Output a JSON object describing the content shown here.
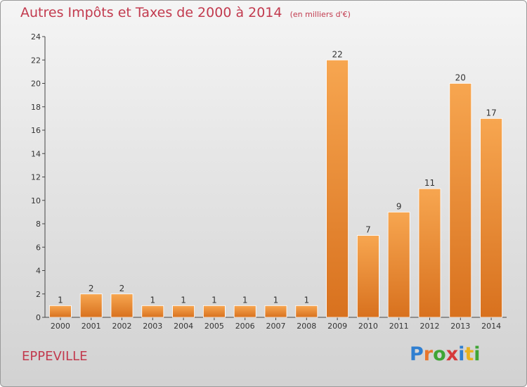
{
  "chart_data": {
    "type": "bar",
    "title": "Autres Impôts et Taxes de 2000 à 2014",
    "subtitle": "(en milliers d'€)",
    "categories": [
      "2000",
      "2001",
      "2002",
      "2003",
      "2004",
      "2005",
      "2006",
      "2007",
      "2008",
      "2009",
      "2010",
      "2011",
      "2012",
      "2013",
      "2014"
    ],
    "values": [
      1,
      2,
      2,
      1,
      1,
      1,
      1,
      1,
      1,
      22,
      7,
      9,
      11,
      20,
      17
    ],
    "ylim": [
      0,
      24
    ],
    "yticks": [
      0,
      2,
      4,
      6,
      8,
      10,
      12,
      14,
      16,
      18,
      20,
      22,
      24
    ],
    "bar_color": "#f0903a",
    "grid": false
  },
  "footer": {
    "commune": "EPPEVILLE",
    "brand": [
      "P",
      "r",
      "o",
      "x",
      "i",
      "t",
      "i"
    ]
  }
}
